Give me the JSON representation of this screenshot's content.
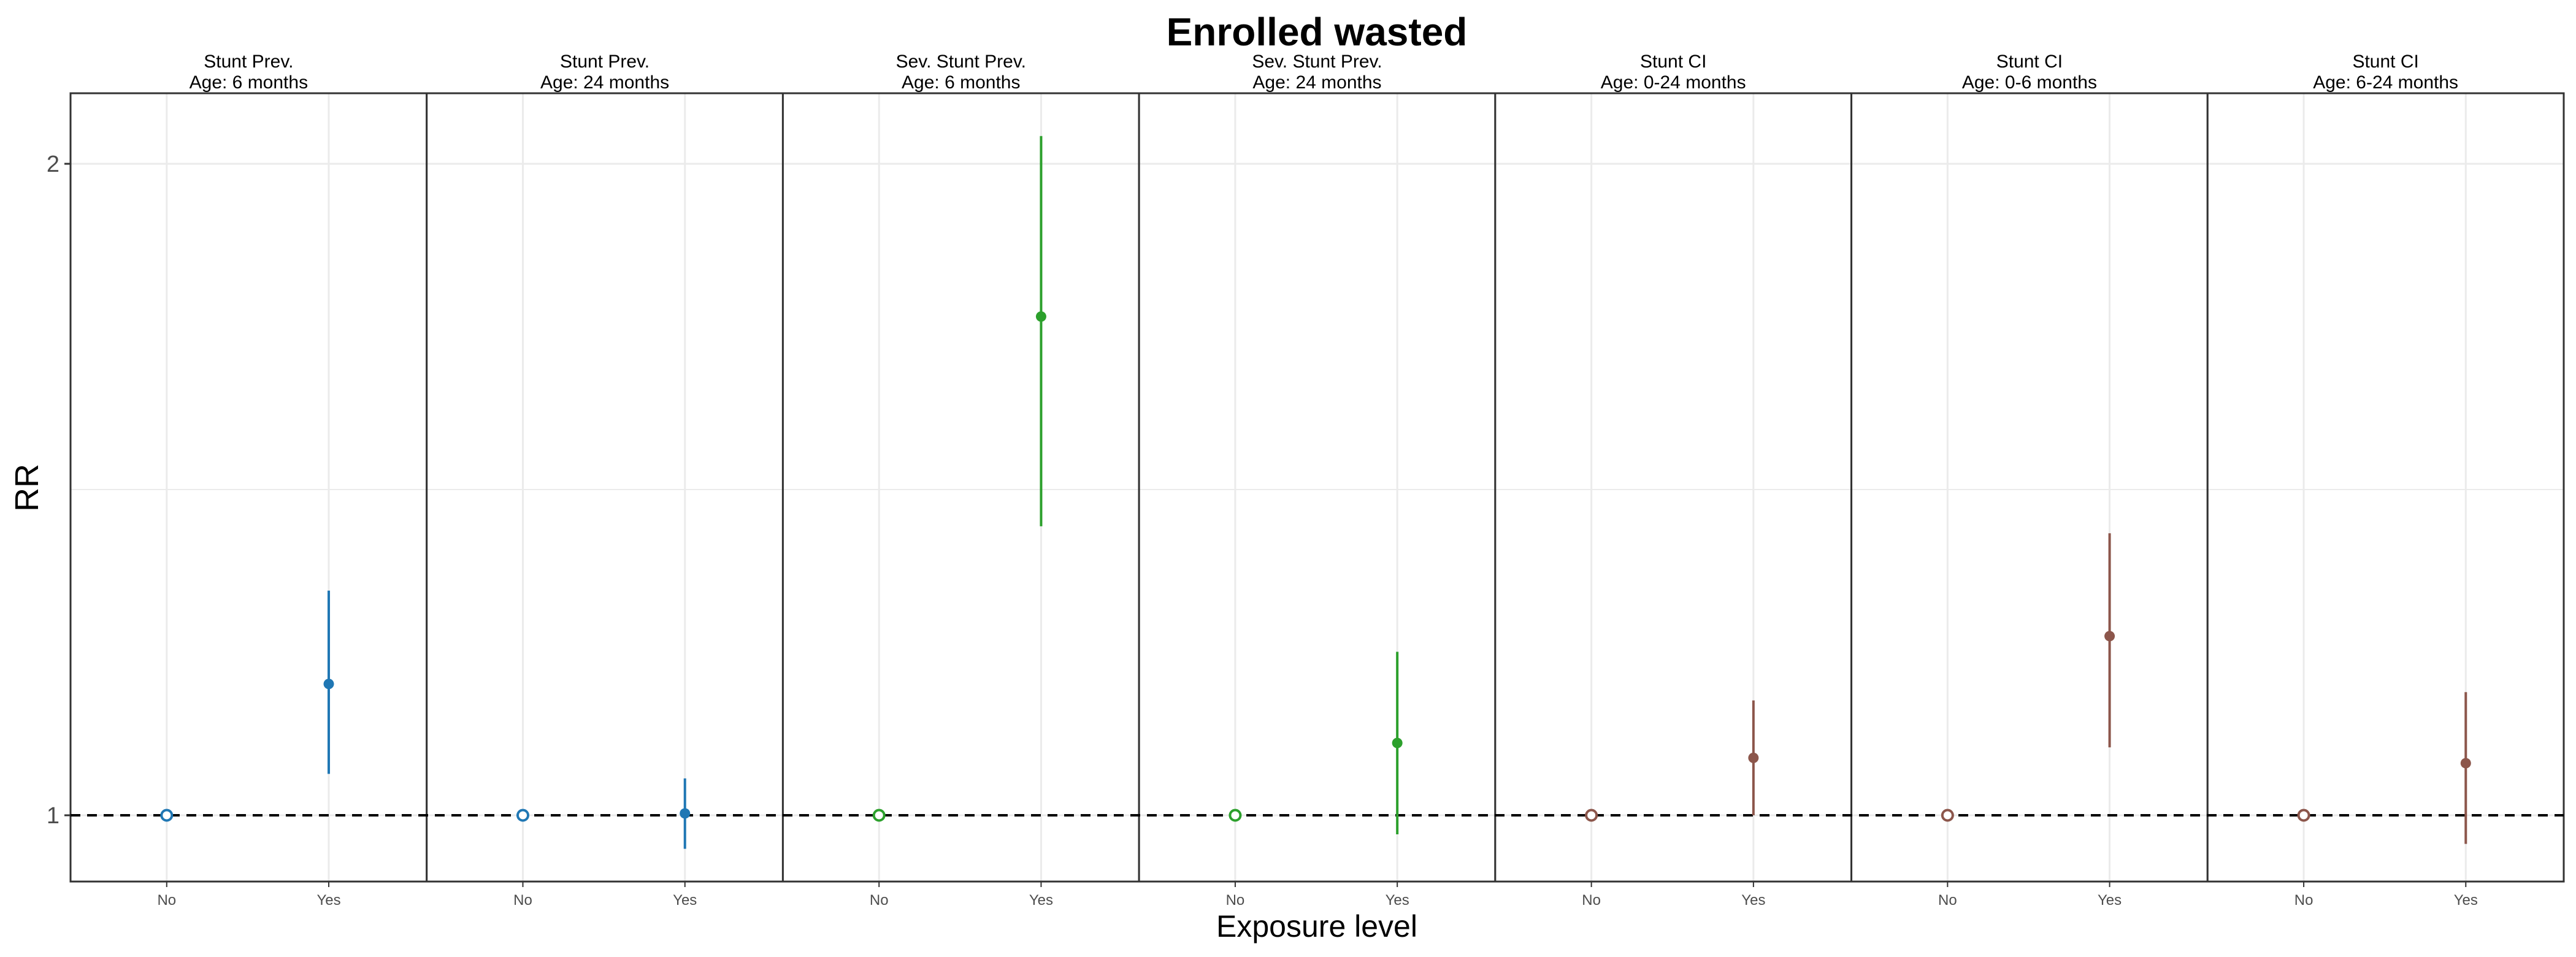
{
  "chart_data": {
    "type": "scatter",
    "title": "Enrolled wasted",
    "xlabel": "Exposure level",
    "ylabel": "RR",
    "yscale": "log",
    "ylim": [
      0.92,
      2.1
    ],
    "yticks": [
      1,
      2
    ],
    "ytick_labels": [
      "1",
      "2"
    ],
    "grid": true,
    "reference_line": 1,
    "categories": [
      "No",
      "Yes"
    ],
    "panels": [
      {
        "label_line1": "Stunt Prev.",
        "label_line2": "Age: 6 months",
        "color": "#1F77B4",
        "points": [
          {
            "x": "No",
            "rr": 1.0,
            "lower": 1.0,
            "upper": 1.0,
            "reference": true
          },
          {
            "x": "Yes",
            "rr": 1.15,
            "lower": 1.045,
            "upper": 1.27
          }
        ]
      },
      {
        "label_line1": "Stunt Prev.",
        "label_line2": "Age: 24 months",
        "color": "#1F77B4",
        "points": [
          {
            "x": "No",
            "rr": 1.0,
            "lower": 1.0,
            "upper": 1.0,
            "reference": true
          },
          {
            "x": "Yes",
            "rr": 1.002,
            "lower": 0.965,
            "upper": 1.04
          }
        ]
      },
      {
        "label_line1": "Sev. Stunt Prev.",
        "label_line2": "Age: 6 months",
        "color": "#2CA02C",
        "points": [
          {
            "x": "No",
            "rr": 1.0,
            "lower": 1.0,
            "upper": 1.0,
            "reference": true
          },
          {
            "x": "Yes",
            "rr": 1.7,
            "lower": 1.36,
            "upper": 2.06
          }
        ]
      },
      {
        "label_line1": "Sev. Stunt Prev.",
        "label_line2": "Age: 24 months",
        "color": "#2CA02C",
        "points": [
          {
            "x": "No",
            "rr": 1.0,
            "lower": 1.0,
            "upper": 1.0,
            "reference": true
          },
          {
            "x": "Yes",
            "rr": 1.08,
            "lower": 0.98,
            "upper": 1.19
          }
        ]
      },
      {
        "label_line1": "Stunt CI",
        "label_line2": "Age: 0-24 months",
        "color": "#8C564B",
        "points": [
          {
            "x": "No",
            "rr": 1.0,
            "lower": 1.0,
            "upper": 1.0,
            "reference": true
          },
          {
            "x": "Yes",
            "rr": 1.063,
            "lower": 1.0,
            "upper": 1.13
          }
        ]
      },
      {
        "label_line1": "Stunt CI",
        "label_line2": "Age: 0-6 months",
        "color": "#8C564B",
        "points": [
          {
            "x": "No",
            "rr": 1.0,
            "lower": 1.0,
            "upper": 1.0,
            "reference": true
          },
          {
            "x": "Yes",
            "rr": 1.21,
            "lower": 1.075,
            "upper": 1.35
          }
        ]
      },
      {
        "label_line1": "Stunt CI",
        "label_line2": "Age: 6-24 months",
        "color": "#8C564B",
        "points": [
          {
            "x": "No",
            "rr": 1.0,
            "lower": 1.0,
            "upper": 1.0,
            "reference": true
          },
          {
            "x": "Yes",
            "rr": 1.057,
            "lower": 0.97,
            "upper": 1.14
          }
        ]
      }
    ]
  }
}
